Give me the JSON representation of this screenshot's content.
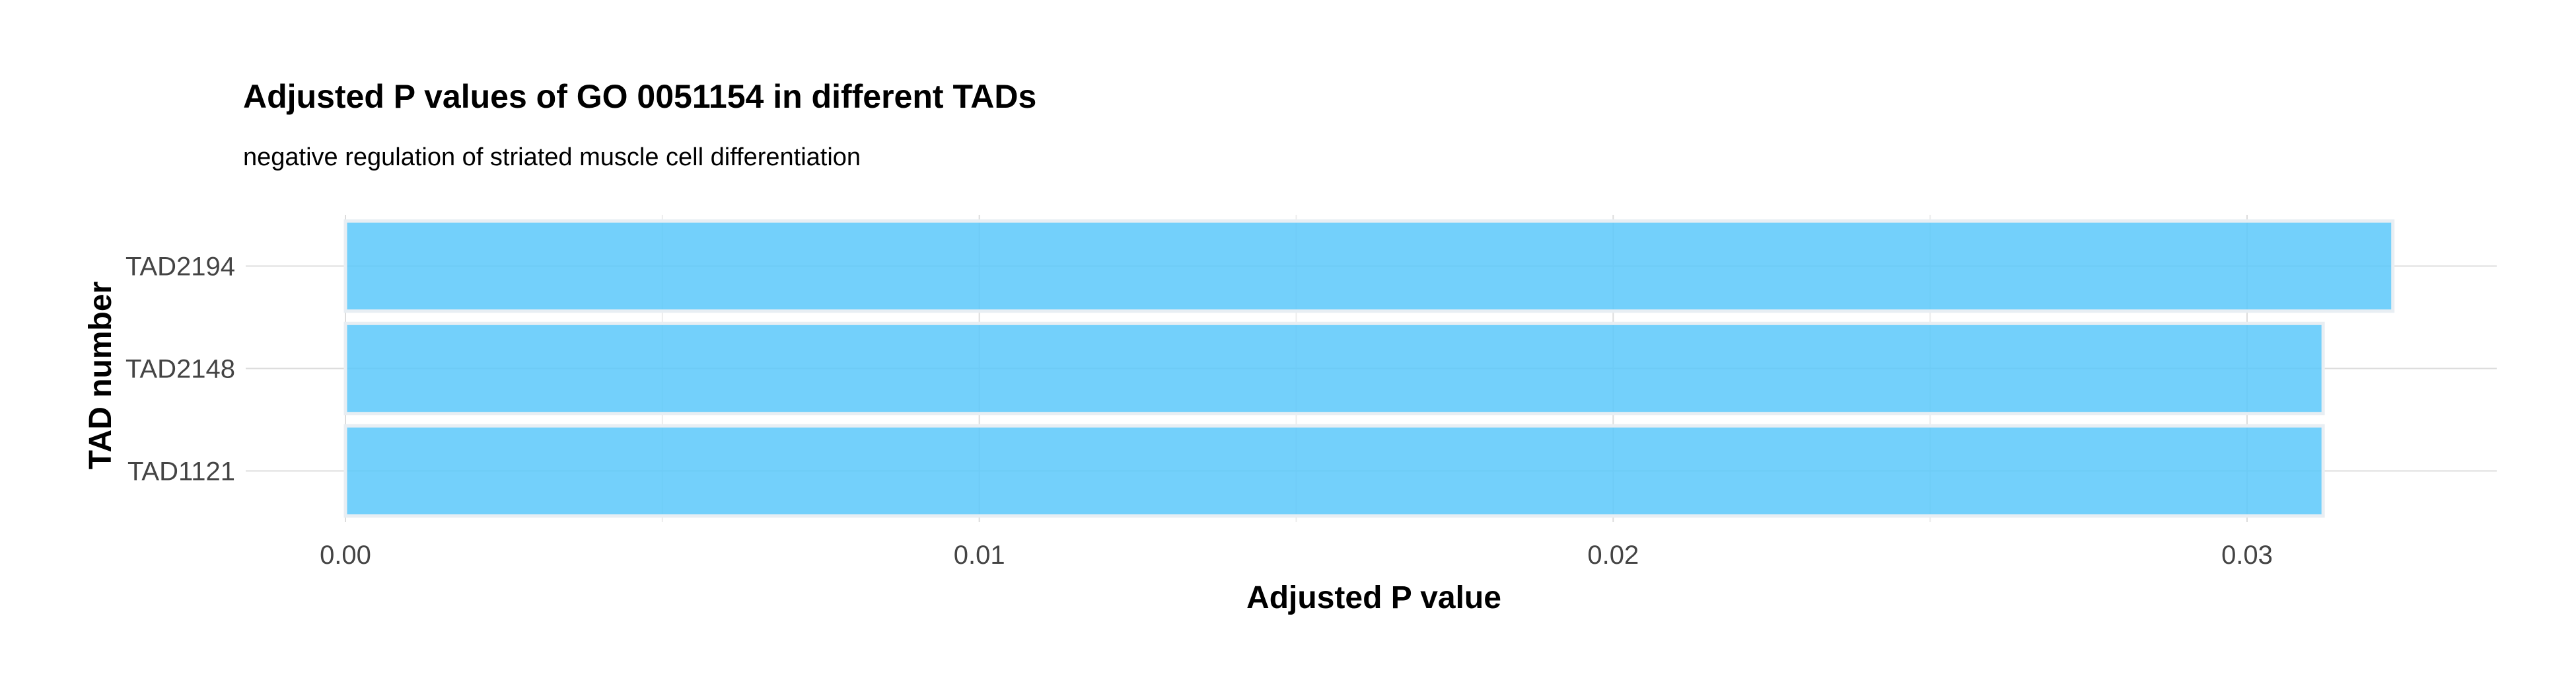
{
  "chart_data": {
    "type": "bar",
    "orientation": "horizontal",
    "title": "Adjusted P values of GO 0051154 in different TADs",
    "subtitle": "negative regulation of striated muscle cell differentiation",
    "xlabel": "Adjusted P value",
    "ylabel": "TAD number",
    "categories": [
      "TAD2194",
      "TAD2148",
      "TAD1121"
    ],
    "values": [
      0.0323,
      0.0312,
      0.0312
    ],
    "xlim": [
      0,
      0.034
    ],
    "xticks": [
      0.0,
      0.01,
      0.02,
      0.03
    ],
    "xtick_labels": [
      "0.00",
      "0.01",
      "0.02",
      "0.03"
    ],
    "grid": true,
    "legend": "none",
    "bar_color": "#5ac8fa",
    "bar_outline": "#e8eef3"
  }
}
